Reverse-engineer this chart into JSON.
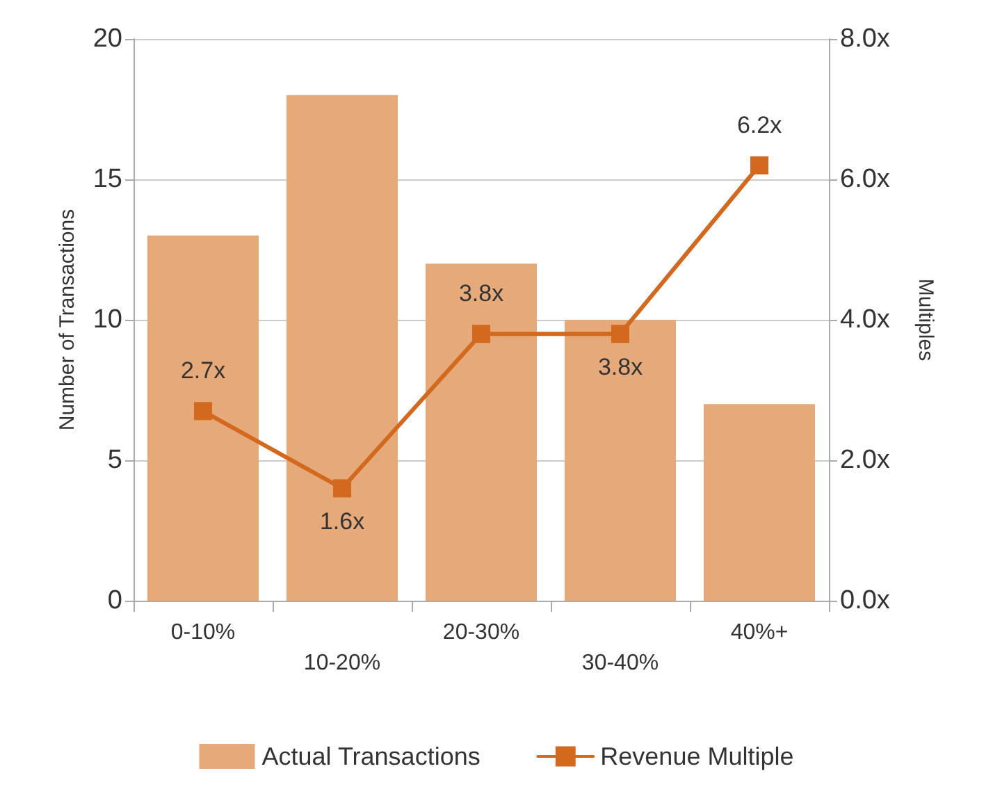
{
  "chart_data": {
    "type": "bar",
    "categories": [
      "0-10%",
      "10-20%",
      "20-30%",
      "30-40%",
      "40%+"
    ],
    "ylabel": "Number of Transactions",
    "y2label": "Multiples",
    "series": [
      {
        "name": "Actual Transactions",
        "color": "#e6aa7a",
        "values": [
          13,
          18,
          12,
          10,
          7
        ]
      },
      {
        "name": "Revenue Multiple",
        "type": "line",
        "axis": "y2",
        "color": "#d2691e",
        "marker": "square",
        "values": [
          2.7,
          1.6,
          3.8,
          3.8,
          6.2
        ],
        "value_labels": [
          "2.7x",
          "1.6x",
          "3.8x",
          "3.8x",
          "6.2x"
        ]
      }
    ],
    "ylim": [
      0,
      20
    ],
    "yticks": [
      0,
      5,
      10,
      15,
      20
    ],
    "y2lim": [
      0,
      8
    ],
    "y2ticks": [
      {
        "value": 0,
        "label": "0.0x"
      },
      {
        "value": 2,
        "label": "2.0x"
      },
      {
        "value": 4,
        "label": "4.0x"
      },
      {
        "value": 6,
        "label": "6.0x"
      },
      {
        "value": 8,
        "label": "8.0x"
      }
    ],
    "grid": "y",
    "legend": "bottom"
  }
}
